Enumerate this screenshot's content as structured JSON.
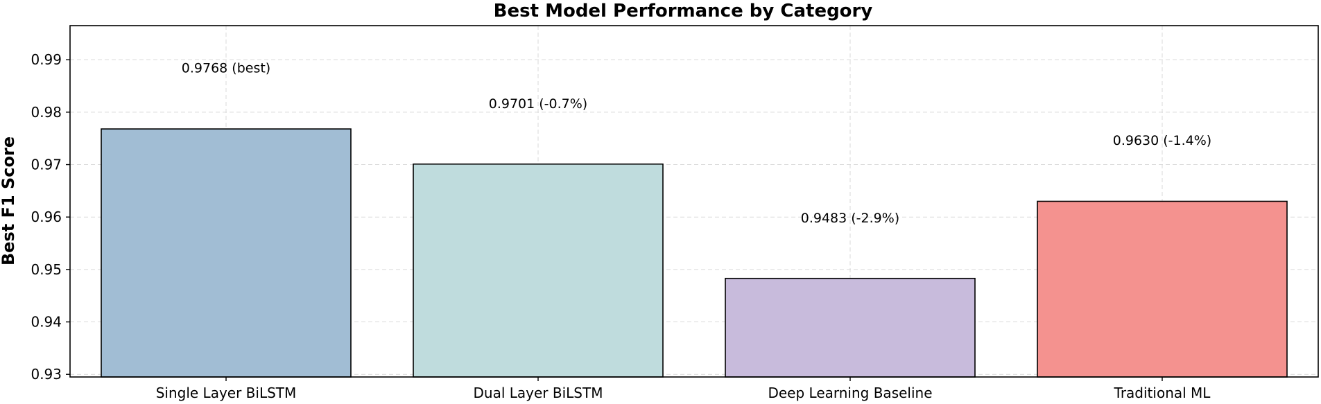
{
  "chart_data": {
    "type": "bar",
    "title": "Best Model Performance by Category",
    "xlabel": "",
    "ylabel": "Best F1 Score",
    "ylim": [
      0.9295,
      0.9965
    ],
    "yticks": [
      0.93,
      0.94,
      0.95,
      0.96,
      0.97,
      0.98,
      0.99
    ],
    "grid": true,
    "categories": [
      "Single Layer BiLSTM",
      "Dual Layer BiLSTM",
      "Deep Learning Baseline",
      "Traditional ML"
    ],
    "values": [
      0.9768,
      0.9701,
      0.9483,
      0.963
    ],
    "colors": [
      "#a1bdd4",
      "#bfdcdd",
      "#c8bbdc",
      "#f4928f"
    ],
    "data_labels": [
      "0.9768 (best)",
      "0.9701 (-0.7%)",
      "0.9483 (-2.9%)",
      "0.9630 (-1.4%)"
    ],
    "label_values": [
      0.9885,
      0.9817,
      0.9599,
      0.9747
    ]
  }
}
